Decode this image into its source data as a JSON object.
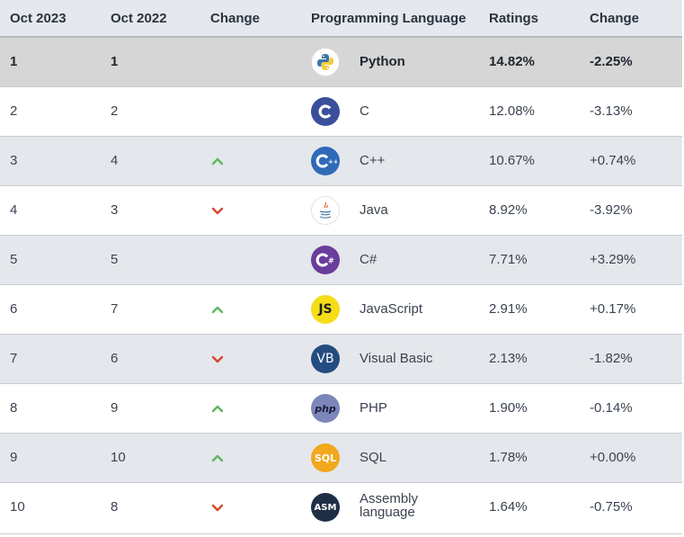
{
  "header": {
    "col_this_year": "Oct 2023",
    "col_last_year": "Oct 2022",
    "col_change_arrow": "Change",
    "col_language": "Programming Language",
    "col_ratings": "Ratings",
    "col_change": "Change"
  },
  "colors": {
    "up": "#5cb85c",
    "down": "#d9452c",
    "header_bg": "#e5e8ec",
    "stripe_bg": "#e4e7eb",
    "first_row_bg": "#d6d6d6"
  },
  "rows": [
    {
      "rank": "1",
      "prev": "1",
      "trend": "none",
      "icon": "python-icon",
      "language": "Python",
      "rating": "14.82%",
      "change": "-2.25%"
    },
    {
      "rank": "2",
      "prev": "2",
      "trend": "none",
      "icon": "c-language-icon",
      "language": "C",
      "rating": "12.08%",
      "change": "-3.13%"
    },
    {
      "rank": "3",
      "prev": "4",
      "trend": "up",
      "icon": "cpp-icon",
      "language": "C++",
      "rating": "10.67%",
      "change": "+0.74%"
    },
    {
      "rank": "4",
      "prev": "3",
      "trend": "down",
      "icon": "java-icon",
      "language": "Java",
      "rating": "8.92%",
      "change": "-3.92%"
    },
    {
      "rank": "5",
      "prev": "5",
      "trend": "none",
      "icon": "csharp-icon",
      "language": "C#",
      "rating": "7.71%",
      "change": "+3.29%"
    },
    {
      "rank": "6",
      "prev": "7",
      "trend": "up",
      "icon": "javascript-icon",
      "language": "JavaScript",
      "rating": "2.91%",
      "change": "+0.17%",
      "icon_text": "JS"
    },
    {
      "rank": "7",
      "prev": "6",
      "trend": "down",
      "icon": "visual-basic-icon",
      "language": "Visual Basic",
      "rating": "2.13%",
      "change": "-1.82%",
      "icon_text": "VB"
    },
    {
      "rank": "8",
      "prev": "9",
      "trend": "up",
      "icon": "php-icon",
      "language": "PHP",
      "rating": "1.90%",
      "change": "-0.14%",
      "icon_text": "php"
    },
    {
      "rank": "9",
      "prev": "10",
      "trend": "up",
      "icon": "sql-icon",
      "language": "SQL",
      "rating": "1.78%",
      "change": "+0.00%",
      "icon_text": "SQL"
    },
    {
      "rank": "10",
      "prev": "8",
      "trend": "down",
      "icon": "assembly-icon",
      "language": "Assembly language",
      "rating": "1.64%",
      "change": "-0.75%",
      "icon_text": "ASM"
    }
  ]
}
